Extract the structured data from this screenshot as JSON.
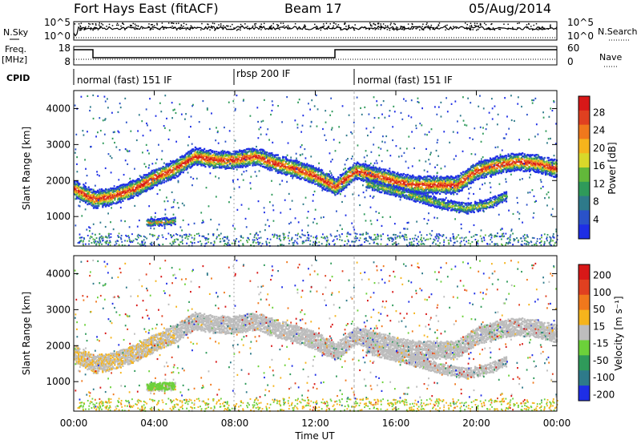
{
  "header": {
    "station": "Fort Hays East (fitACF)",
    "beam": "Beam 17",
    "date": "05/Aug/2014"
  },
  "side_labels": {
    "nsky": "N.Sky",
    "freq": "Freq.",
    "mhz": "[MHz]",
    "cpid": "CPID",
    "nsearch": "N.Search",
    "nave": "Nave"
  },
  "noise_panel": {
    "left_ticks": [
      "10^5",
      "10^0"
    ],
    "right_ticks": [
      "10^5",
      "10^0"
    ]
  },
  "freq_panel": {
    "left_ticks": [
      "18",
      "8"
    ],
    "right_ticks": [
      "60",
      "0"
    ]
  },
  "cpid_panel": {
    "segments": [
      {
        "label": "normal (fast) 151 IF",
        "start_hour": 0.0
      },
      {
        "label": "rbsp 200 IF",
        "start_hour": 8.0
      },
      {
        "label": "normal (fast) 151 IF",
        "start_hour": 14.0
      }
    ]
  },
  "chart_data": [
    {
      "type": "heatmap",
      "parameter": "Power",
      "ylabel": "Slant Range [km]",
      "ylim": [
        180,
        4500
      ],
      "yticks": [
        "1000",
        "2000",
        "3000",
        "4000"
      ],
      "xlim": [
        0,
        24
      ],
      "colorbar": {
        "label": "Power [dB]",
        "ticks": [
          "4",
          "8",
          "12",
          "16",
          "20",
          "24",
          "28"
        ],
        "colors": [
          "#1e2ee6",
          "#2a52c8",
          "#2e7a8a",
          "#2f9a5a",
          "#62b83a",
          "#d8d82a",
          "#f5b41c",
          "#f0781c",
          "#e04020",
          "#d81818"
        ]
      },
      "echo_bands": [
        {
          "name": "main",
          "points": [
            [
              0,
              1800
            ],
            [
              1,
              1500
            ],
            [
              2,
              1600
            ],
            [
              3,
              1800
            ],
            [
              4,
              2100
            ],
            [
              5,
              2350
            ],
            [
              6,
              2700
            ],
            [
              7,
              2600
            ],
            [
              8,
              2600
            ],
            [
              9,
              2700
            ],
            [
              10,
              2500
            ],
            [
              11,
              2350
            ],
            [
              12,
              2150
            ],
            [
              13,
              1850
            ],
            [
              14,
              2300
            ],
            [
              15,
              2150
            ],
            [
              16,
              2000
            ],
            [
              17,
              1900
            ],
            [
              18,
              1900
            ],
            [
              19,
              1900
            ],
            [
              20,
              2300
            ],
            [
              21,
              2450
            ],
            [
              22,
              2550
            ],
            [
              23,
              2500
            ],
            [
              24,
              2350
            ]
          ]
        },
        {
          "name": "lower",
          "points": [
            [
              14.5,
              1950
            ],
            [
              15.5,
              1800
            ],
            [
              16.5,
              1650
            ],
            [
              17.5,
              1500
            ],
            [
              18.5,
              1350
            ],
            [
              19.5,
              1250
            ],
            [
              20.5,
              1350
            ],
            [
              21.5,
              1600
            ]
          ]
        },
        {
          "name": "patch",
          "points": [
            [
              3.6,
              850
            ],
            [
              5,
              900
            ]
          ]
        }
      ]
    },
    {
      "type": "heatmap",
      "parameter": "Velocity",
      "ylabel": "Slant Range [km]",
      "ylim": [
        180,
        4500
      ],
      "yticks": [
        "1000",
        "2000",
        "3000",
        "4000"
      ],
      "xlim": [
        0,
        24
      ],
      "colorbar": {
        "label": "Velocity [m s⁻¹]",
        "ticks": [
          "200",
          "100",
          "50",
          "15",
          "-15",
          "-50",
          "-100",
          "-200"
        ],
        "colors": [
          "#1e2ee6",
          "#2e7a8a",
          "#2f9a5a",
          "#6cd13a",
          "#bdbdbd",
          "#f5b41c",
          "#f0781c",
          "#e04020",
          "#d81818"
        ]
      }
    }
  ],
  "time_axis": {
    "label": "Time UT",
    "ticks": [
      "00:00",
      "04:00",
      "08:00",
      "12:00",
      "16:00",
      "20:00",
      "00:00"
    ]
  }
}
